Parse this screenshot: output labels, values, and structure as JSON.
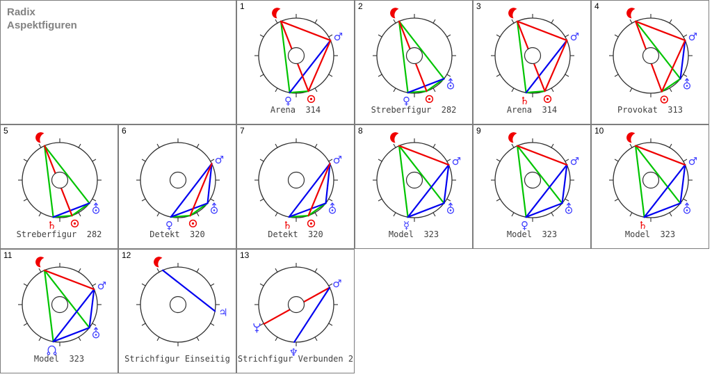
{
  "window": {
    "title_line1": "Radix",
    "title_line2": "Aspektfiguren"
  },
  "colors": {
    "red": "#ef0000",
    "green": "#00c400",
    "blue": "#0000f0",
    "glyph_blue": "#3c3cff",
    "glyph_red": "#f00000",
    "wheel_stroke": "#2e2e2e",
    "caption_color": "#3f3f3f"
  },
  "glyph_chars": {
    "mars": "♂",
    "venus": "♀",
    "mercury": "☿",
    "saturn": "♄",
    "jupiter": "♃",
    "neptune": "♆"
  },
  "cells": [
    {
      "id": "1",
      "caption": "Arena  314",
      "col": 2,
      "row": 0,
      "planets": [
        {
          "p": "moon",
          "deg": 114
        },
        {
          "p": "mars",
          "deg": 24
        },
        {
          "p": "venus",
          "deg": 260
        },
        {
          "p": "sun",
          "deg": 289
        }
      ],
      "aspects": [
        [
          "moon",
          "venus",
          "green"
        ],
        [
          "venus",
          "sun",
          "green"
        ],
        [
          "mars",
          "venus",
          "blue"
        ],
        [
          "moon",
          "mars",
          "red"
        ],
        [
          "moon",
          "sun",
          "red"
        ],
        [
          "mars",
          "sun",
          "red"
        ]
      ]
    },
    {
      "id": "2",
      "caption": "Streberfigur  282",
      "col": 3,
      "row": 0,
      "planets": [
        {
          "p": "moon",
          "deg": 114
        },
        {
          "p": "venus",
          "deg": 260
        },
        {
          "p": "sun",
          "deg": 289
        },
        {
          "p": "uranus",
          "deg": 322
        }
      ],
      "aspects": [
        [
          "moon",
          "venus",
          "green"
        ],
        [
          "moon",
          "uranus",
          "green"
        ],
        [
          "venus",
          "sun",
          "green"
        ],
        [
          "sun",
          "uranus",
          "green"
        ],
        [
          "venus",
          "uranus",
          "blue"
        ],
        [
          "moon",
          "sun",
          "red"
        ]
      ]
    },
    {
      "id": "3",
      "caption": "Arena  314",
      "col": 4,
      "row": 0,
      "planets": [
        {
          "p": "moon",
          "deg": 114
        },
        {
          "p": "mars",
          "deg": 24
        },
        {
          "p": "saturn",
          "deg": 260
        },
        {
          "p": "sun",
          "deg": 289
        }
      ],
      "aspects": [
        [
          "moon",
          "saturn",
          "green"
        ],
        [
          "saturn",
          "sun",
          "green"
        ],
        [
          "mars",
          "saturn",
          "blue"
        ],
        [
          "moon",
          "mars",
          "red"
        ],
        [
          "moon",
          "sun",
          "red"
        ],
        [
          "mars",
          "sun",
          "red"
        ]
      ]
    },
    {
      "id": "4",
      "caption": "Provokat  313",
      "col": 5,
      "row": 0,
      "planets": [
        {
          "p": "moon",
          "deg": 114
        },
        {
          "p": "mars",
          "deg": 24
        },
        {
          "p": "sun",
          "deg": 287
        },
        {
          "p": "uranus",
          "deg": 322
        }
      ],
      "aspects": [
        [
          "moon",
          "uranus",
          "green"
        ],
        [
          "uranus",
          "sun",
          "green"
        ],
        [
          "mars",
          "uranus",
          "blue"
        ],
        [
          "moon",
          "mars",
          "red"
        ],
        [
          "moon",
          "sun",
          "red"
        ],
        [
          "mars",
          "sun",
          "red"
        ]
      ]
    },
    {
      "id": "5",
      "caption": "Streberfigur  282",
      "col": 0,
      "row": 1,
      "planets": [
        {
          "p": "moon",
          "deg": 114
        },
        {
          "p": "saturn",
          "deg": 260
        },
        {
          "p": "sun",
          "deg": 289
        },
        {
          "p": "uranus",
          "deg": 322
        }
      ],
      "aspects": [
        [
          "moon",
          "saturn",
          "green"
        ],
        [
          "moon",
          "uranus",
          "green"
        ],
        [
          "saturn",
          "sun",
          "green"
        ],
        [
          "sun",
          "uranus",
          "green"
        ],
        [
          "saturn",
          "uranus",
          "blue"
        ],
        [
          "moon",
          "sun",
          "red"
        ]
      ]
    },
    {
      "id": "6",
      "caption": "Detekt  320",
      "col": 1,
      "row": 1,
      "planets": [
        {
          "p": "mars",
          "deg": 26
        },
        {
          "p": "venus",
          "deg": 259
        },
        {
          "p": "sun",
          "deg": 289
        },
        {
          "p": "uranus",
          "deg": 322
        }
      ],
      "aspects": [
        [
          "venus",
          "sun",
          "green"
        ],
        [
          "sun",
          "uranus",
          "green"
        ],
        [
          "mars",
          "venus",
          "blue"
        ],
        [
          "mars",
          "uranus",
          "blue"
        ],
        [
          "venus",
          "uranus",
          "blue"
        ],
        [
          "mars",
          "sun",
          "red"
        ]
      ]
    },
    {
      "id": "7",
      "caption": "Detekt  320",
      "col": 2,
      "row": 1,
      "planets": [
        {
          "p": "mars",
          "deg": 26
        },
        {
          "p": "saturn",
          "deg": 259
        },
        {
          "p": "sun",
          "deg": 289
        },
        {
          "p": "uranus",
          "deg": 322
        }
      ],
      "aspects": [
        [
          "saturn",
          "sun",
          "green"
        ],
        [
          "sun",
          "uranus",
          "green"
        ],
        [
          "mars",
          "saturn",
          "blue"
        ],
        [
          "mars",
          "uranus",
          "blue"
        ],
        [
          "saturn",
          "uranus",
          "blue"
        ],
        [
          "mars",
          "sun",
          "red"
        ]
      ]
    },
    {
      "id": "8",
      "caption": "Model  323",
      "col": 3,
      "row": 1,
      "planets": [
        {
          "p": "moon",
          "deg": 114
        },
        {
          "p": "mars",
          "deg": 24
        },
        {
          "p": "mercury",
          "deg": 260
        },
        {
          "p": "uranus",
          "deg": 322
        }
      ],
      "aspects": [
        [
          "moon",
          "mercury",
          "green"
        ],
        [
          "moon",
          "uranus",
          "green"
        ],
        [
          "mars",
          "mercury",
          "blue"
        ],
        [
          "mars",
          "uranus",
          "blue"
        ],
        [
          "mercury",
          "uranus",
          "blue"
        ],
        [
          "moon",
          "mars",
          "red"
        ]
      ]
    },
    {
      "id": "9",
      "caption": "Model  323",
      "col": 4,
      "row": 1,
      "planets": [
        {
          "p": "moon",
          "deg": 114
        },
        {
          "p": "mars",
          "deg": 24
        },
        {
          "p": "venus",
          "deg": 260
        },
        {
          "p": "uranus",
          "deg": 322
        }
      ],
      "aspects": [
        [
          "moon",
          "venus",
          "green"
        ],
        [
          "moon",
          "uranus",
          "green"
        ],
        [
          "mars",
          "venus",
          "blue"
        ],
        [
          "mars",
          "uranus",
          "blue"
        ],
        [
          "venus",
          "uranus",
          "blue"
        ],
        [
          "moon",
          "mars",
          "red"
        ]
      ]
    },
    {
      "id": "10",
      "caption": "Model  323",
      "col": 5,
      "row": 1,
      "planets": [
        {
          "p": "moon",
          "deg": 114
        },
        {
          "p": "mars",
          "deg": 24
        },
        {
          "p": "saturn",
          "deg": 260
        },
        {
          "p": "uranus",
          "deg": 322
        }
      ],
      "aspects": [
        [
          "moon",
          "saturn",
          "green"
        ],
        [
          "moon",
          "uranus",
          "green"
        ],
        [
          "mars",
          "saturn",
          "blue"
        ],
        [
          "mars",
          "uranus",
          "blue"
        ],
        [
          "saturn",
          "uranus",
          "blue"
        ],
        [
          "moon",
          "mars",
          "red"
        ]
      ]
    },
    {
      "id": "11",
      "caption": "Model  323",
      "col": 0,
      "row": 2,
      "planets": [
        {
          "p": "moon",
          "deg": 114
        },
        {
          "p": "mars",
          "deg": 24
        },
        {
          "p": "node",
          "deg": 260
        },
        {
          "p": "uranus",
          "deg": 322
        }
      ],
      "aspects": [
        [
          "moon",
          "node",
          "green"
        ],
        [
          "moon",
          "uranus",
          "green"
        ],
        [
          "mars",
          "node",
          "blue"
        ],
        [
          "mars",
          "uranus",
          "blue"
        ],
        [
          "node",
          "uranus",
          "blue"
        ],
        [
          "moon",
          "mars",
          "red"
        ]
      ]
    },
    {
      "id": "12",
      "caption": "Strichfigur Einseitig",
      "col": 1,
      "row": 2,
      "planets": [
        {
          "p": "moon",
          "deg": 114
        },
        {
          "p": "jupiter",
          "deg": 350
        }
      ],
      "aspects": [
        [
          "moon",
          "jupiter",
          "blue"
        ]
      ]
    },
    {
      "id": "13",
      "caption": "Strichfigur Verbunden 2",
      "col": 2,
      "row": 2,
      "planets": [
        {
          "p": "mars",
          "deg": 27
        },
        {
          "p": "pluto",
          "deg": 211
        },
        {
          "p": "neptune",
          "deg": 267
        }
      ],
      "aspects": [
        [
          "pluto",
          "mars",
          "red"
        ],
        [
          "neptune",
          "mars",
          "blue"
        ]
      ]
    }
  ]
}
